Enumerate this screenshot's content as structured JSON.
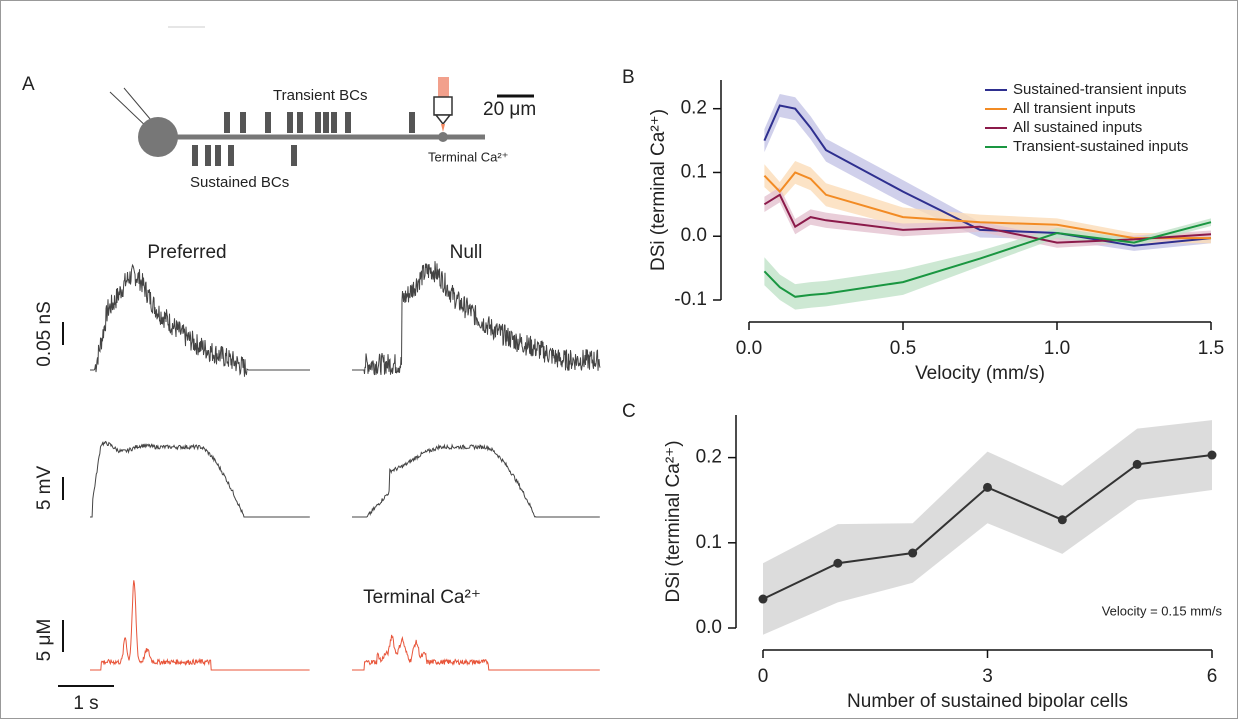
{
  "panel_a": {
    "label": "A",
    "transient_label": "Transient BCs",
    "sustained_label": "Sustained BCs",
    "scale_um": "20 μm",
    "terminal_label": "Terminal Ca²⁺",
    "preferred": "Preferred",
    "null": "Null",
    "scale_ns": "0.05 nS",
    "scale_mv": "5 mV",
    "scale_um_ca": "5 μM",
    "ca_title": "Terminal Ca²⁺",
    "scale_time": "1 s"
  },
  "chart_data": [
    {
      "type": "line",
      "panel": "B",
      "xlabel": "Velocity (mm/s)",
      "ylabel": "DSi (terminal Ca²⁺)",
      "legend": "upper right",
      "x": [
        0.05,
        0.1,
        0.15,
        0.2,
        0.25,
        0.5,
        0.75,
        1.0,
        1.25,
        1.5
      ],
      "series": [
        {
          "name": "Sustained-transient inputs",
          "color": "#2e2f8f",
          "band_color": "#c4c4e6",
          "values": [
            0.15,
            0.205,
            0.2,
            0.17,
            0.135,
            0.07,
            0.01,
            0.005,
            -0.015,
            -0.003
          ],
          "errors": [
            0.018,
            0.018,
            0.018,
            0.018,
            0.018,
            0.018,
            0.012,
            0.01,
            0.008,
            0.008
          ]
        },
        {
          "name": "All transient inputs",
          "color": "#f28b24",
          "band_color": "#fbdcb8",
          "values": [
            0.095,
            0.07,
            0.1,
            0.09,
            0.065,
            0.03,
            0.022,
            0.018,
            -0.003,
            -0.003
          ],
          "errors": [
            0.018,
            0.015,
            0.018,
            0.018,
            0.018,
            0.015,
            0.012,
            0.01,
            0.008,
            0.008
          ]
        },
        {
          "name": "All sustained inputs",
          "color": "#8b1a4a",
          "band_color": "#e3c2cf",
          "values": [
            0.05,
            0.065,
            0.015,
            0.03,
            0.025,
            0.01,
            0.015,
            -0.01,
            -0.005,
            0.003
          ],
          "errors": [
            0.012,
            0.012,
            0.012,
            0.012,
            0.012,
            0.01,
            0.008,
            0.008,
            0.006,
            0.006
          ]
        },
        {
          "name": "Transient-sustained inputs",
          "color": "#1a9641",
          "band_color": "#c0e2c8",
          "values": [
            -0.055,
            -0.08,
            -0.095,
            -0.092,
            -0.09,
            -0.072,
            -0.035,
            0.005,
            -0.01,
            0.022
          ],
          "errors": [
            0.022,
            0.02,
            0.02,
            0.02,
            0.02,
            0.02,
            0.012,
            0.008,
            0.006,
            0.006
          ]
        }
      ],
      "xlim": [
        0,
        1.5
      ],
      "ylim": [
        -0.1,
        0.245
      ],
      "xticks": [
        {
          "value": 0,
          "label": "0.0"
        },
        0.5,
        {
          "value": 1,
          "label": "1.0"
        },
        1.5
      ],
      "yticks": [
        -0.1,
        {
          "value": 0,
          "label": "0.0"
        },
        0.1,
        0.2
      ]
    },
    {
      "type": "line",
      "panel": "C",
      "xlabel": "Number of sustained bipolar cells",
      "ylabel": "DSi (terminal Ca²⁺)",
      "annotation": "Velocity = 0.15 mm/s",
      "markers": true,
      "x": [
        0,
        1,
        2,
        3,
        4,
        5,
        6
      ],
      "series": [
        {
          "color": "#333333",
          "band_color": "#d3d3d3",
          "values": [
            0.034,
            0.076,
            0.088,
            0.165,
            0.127,
            0.192,
            0.203
          ],
          "errors": [
            0.042,
            0.046,
            0.035,
            0.042,
            0.04,
            0.042,
            0.041
          ]
        }
      ],
      "xlim": [
        0,
        6
      ],
      "ylim": [
        0,
        0.25
      ],
      "xticks": [
        0,
        3,
        6
      ],
      "yticks": [
        {
          "value": 0,
          "label": "0.0"
        },
        0.1,
        0.2
      ]
    }
  ]
}
